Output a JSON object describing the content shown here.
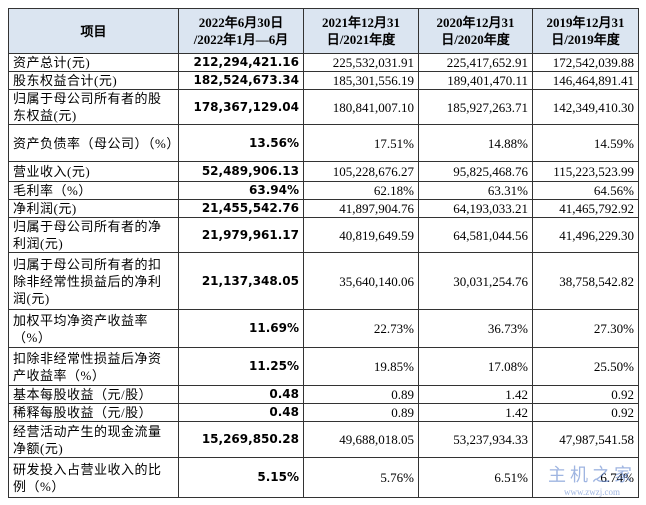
{
  "table": {
    "header": [
      [
        "项目"
      ],
      [
        "2022年6月30日",
        "/2022年1月—6月"
      ],
      [
        "2021年12月31",
        "日/2021年度"
      ],
      [
        "2020年12月31",
        "日/2020年度"
      ],
      [
        "2019年12月31",
        "日/2019年度"
      ]
    ],
    "rows": [
      [
        "资产总计(元)",
        "212,294,421.16",
        "225,532,031.91",
        "225,417,652.91",
        "172,542,039.88"
      ],
      [
        "股东权益合计(元)",
        "182,524,673.34",
        "185,301,556.19",
        "189,401,470.11",
        "146,464,891.41"
      ],
      [
        "归属于母公司所有者的股东权益(元)",
        "178,367,129.04",
        "180,841,007.10",
        "185,927,263.71",
        "142,349,410.30"
      ],
      [
        "资产负债率（母公司）（%）",
        "13.56%",
        "17.51%",
        "14.88%",
        "14.59%"
      ],
      [
        "营业收入(元)",
        "52,489,906.13",
        "105,228,676.27",
        "95,825,468.76",
        "115,223,523.99"
      ],
      [
        "毛利率（%）",
        "63.94%",
        "62.18%",
        "63.31%",
        "64.56%"
      ],
      [
        "净利润(元)",
        "21,455,542.76",
        "41,897,904.76",
        "64,193,033.21",
        "41,465,792.92"
      ],
      [
        "归属于母公司所有者的净利润(元)",
        "21,979,961.17",
        "40,819,649.59",
        "64,581,044.56",
        "41,496,229.30"
      ],
      [
        "归属于母公司所有者的扣除非经常性损益后的净利润(元)",
        "21,137,348.05",
        "35,640,140.06",
        "30,031,254.76",
        "38,758,542.82"
      ],
      [
        "加权平均净资产收益率（%）",
        "11.69%",
        "22.73%",
        "36.73%",
        "27.30%"
      ],
      [
        "扣除非经常性损益后净资产收益率（%）",
        "11.25%",
        "19.85%",
        "17.08%",
        "25.50%"
      ],
      [
        "基本每股收益（元/股）",
        "0.48",
        "0.89",
        "1.42",
        "0.92"
      ],
      [
        "稀释每股收益（元/股）",
        "0.48",
        "0.89",
        "1.42",
        "0.92"
      ],
      [
        "经营活动产生的现金流量净额(元)",
        "15,269,850.28",
        "49,688,018.05",
        "53,237,934.33",
        "47,987,541.58"
      ],
      [
        "研发投入占营业收入的比例（%）",
        "5.15%",
        "5.76%",
        "6.51%",
        "6.74%"
      ]
    ]
  },
  "watermark": {
    "text": "主机之家",
    "url": "www.zwzj.com"
  }
}
